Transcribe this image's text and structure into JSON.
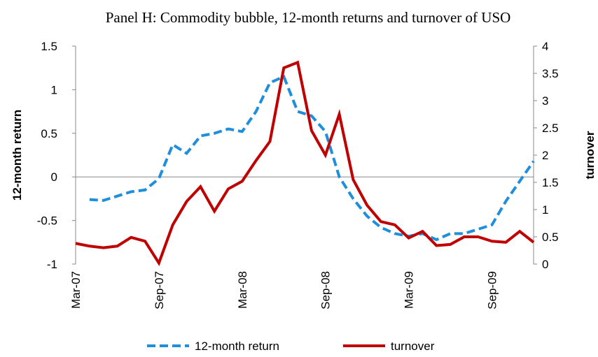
{
  "chart_data": {
    "type": "line",
    "title": "Panel H: Commodity bubble, 12-month returns and turnover of USO",
    "y_label": "12-month return",
    "y2_label": "turnover",
    "categories": [
      "Mar-07",
      null,
      null,
      null,
      null,
      null,
      "Sep-07",
      null,
      null,
      null,
      null,
      null,
      "Mar-08",
      null,
      null,
      null,
      null,
      null,
      "Sep-08",
      null,
      null,
      null,
      null,
      null,
      "Mar-09",
      null,
      null,
      null,
      null,
      null,
      "Sep-09",
      null,
      null,
      null
    ],
    "series": [
      {
        "name": "12-month return",
        "color": "#1f8fdc",
        "dash": true,
        "axis": "y",
        "values": [
          null,
          -0.26,
          -0.27,
          -0.22,
          -0.17,
          -0.15,
          -0.02,
          0.37,
          0.27,
          0.47,
          0.5,
          0.55,
          0.52,
          0.75,
          1.08,
          1.15,
          0.75,
          0.7,
          0.52,
          0.0,
          -0.25,
          -0.45,
          -0.58,
          -0.65,
          -0.68,
          -0.65,
          -0.72,
          -0.65,
          -0.65,
          -0.6,
          -0.55,
          -0.28,
          -0.05,
          0.18
        ]
      },
      {
        "name": "turnover",
        "color": "#c00000",
        "dash": false,
        "axis": "y2",
        "values": [
          0.38,
          0.33,
          0.3,
          0.33,
          0.49,
          0.42,
          0.02,
          0.72,
          1.15,
          1.42,
          0.97,
          1.38,
          1.52,
          1.9,
          2.25,
          3.6,
          3.7,
          2.45,
          2.0,
          2.75,
          1.55,
          1.08,
          0.78,
          0.72,
          0.48,
          0.6,
          0.34,
          0.36,
          0.5,
          0.5,
          0.42,
          0.4,
          0.6,
          0.4
        ]
      }
    ],
    "ylim": [
      -1,
      1.5
    ],
    "yticks": [
      -1,
      -0.5,
      0,
      0.5,
      1,
      1.5
    ],
    "y2lim": [
      0,
      4
    ],
    "y2ticks": [
      0,
      0.5,
      1,
      1.5,
      2,
      2.5,
      3,
      3.5,
      4
    ],
    "legend": "bottom"
  }
}
